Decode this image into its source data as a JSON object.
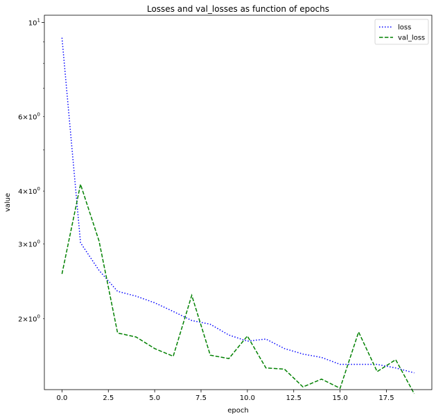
{
  "chart_data": {
    "type": "line",
    "title": "Losses and val_losses as function of epochs",
    "xlabel": "epoch",
    "ylabel": "value",
    "yscale": "log",
    "xlim": [
      -0.95,
      19.95
    ],
    "ylim": [
      1.36,
      10.4
    ],
    "x": [
      0,
      1,
      2,
      3,
      4,
      5,
      6,
      7,
      8,
      9,
      10,
      11,
      12,
      13,
      14,
      15,
      16,
      17,
      18,
      19
    ],
    "x_ticks": [
      0.0,
      2.5,
      5.0,
      7.5,
      10.0,
      12.5,
      15.0,
      17.5
    ],
    "x_tick_labels": [
      "0.0",
      "2.5",
      "5.0",
      "7.5",
      "10.0",
      "12.5",
      "15.0",
      "17.5"
    ],
    "y_major_ticks": [
      {
        "value": 10,
        "base": "10",
        "exp": "1"
      }
    ],
    "y_minor_ticks": [
      {
        "value": 2,
        "mant": "2",
        "base": "10",
        "exp": "0"
      },
      {
        "value": 3,
        "mant": "3",
        "base": "10",
        "exp": "0"
      },
      {
        "value": 4,
        "mant": "4",
        "base": "10",
        "exp": "0"
      },
      {
        "value": 6,
        "mant": "6",
        "base": "10",
        "exp": "0"
      }
    ],
    "y_unlabeled_minor_ticks": [
      5,
      7,
      8,
      9
    ],
    "legend_position": "top-right",
    "grid": false,
    "series": [
      {
        "name": "loss",
        "color": "#0000ff",
        "style": "dotted",
        "values": [
          9.2,
          3.02,
          2.6,
          2.32,
          2.26,
          2.18,
          2.08,
          1.98,
          1.94,
          1.83,
          1.77,
          1.79,
          1.7,
          1.65,
          1.62,
          1.56,
          1.56,
          1.56,
          1.53,
          1.49
        ]
      },
      {
        "name": "val_loss",
        "color": "#008000",
        "style": "dashed",
        "values": [
          2.55,
          4.15,
          3.05,
          1.85,
          1.81,
          1.7,
          1.63,
          2.27,
          1.64,
          1.61,
          1.82,
          1.53,
          1.52,
          1.38,
          1.44,
          1.37,
          1.86,
          1.5,
          1.6,
          1.33
        ]
      }
    ]
  }
}
